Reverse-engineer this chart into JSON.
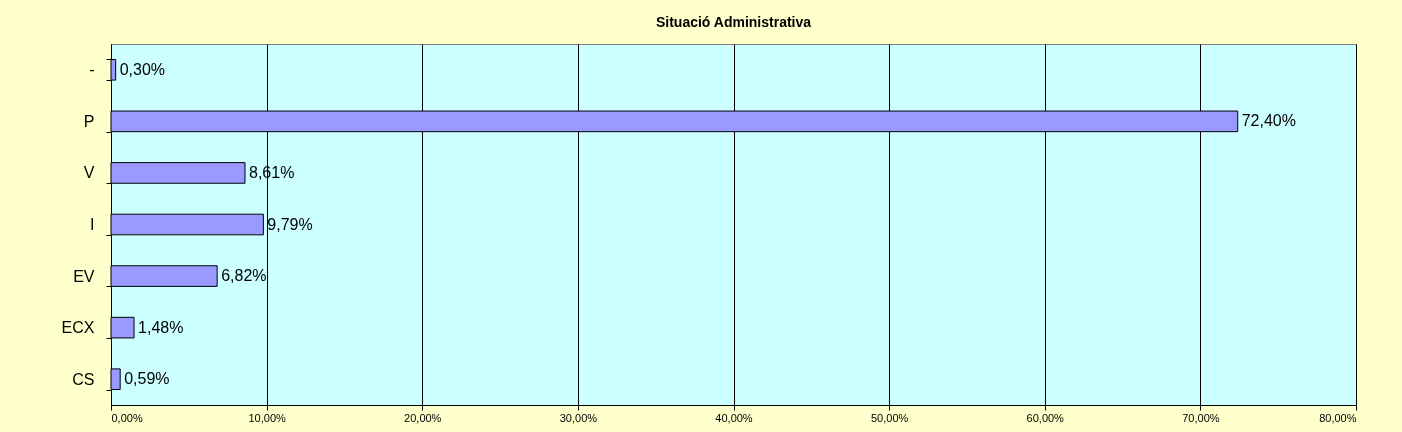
{
  "chart_data": {
    "type": "bar",
    "orientation": "horizontal",
    "title": "Situació Administrativa",
    "categories": [
      "-",
      "P",
      "V",
      "I",
      "EV",
      "ECX",
      "CS"
    ],
    "values": [
      0.3,
      72.4,
      8.61,
      9.79,
      6.82,
      1.48,
      0.59
    ],
    "value_labels": [
      "0,30%",
      "72,40%",
      "8,61%",
      "9,79%",
      "6,82%",
      "1,48%",
      "0,59%"
    ],
    "color": "#9999ff",
    "xlim": [
      0,
      80
    ],
    "xticks": [
      {
        "value": 0,
        "label": "0,00%"
      },
      {
        "value": 10,
        "label": "10,00%"
      },
      {
        "value": 20,
        "label": "20,00%"
      },
      {
        "value": 30,
        "label": "30,00%"
      },
      {
        "value": 40,
        "label": "40,00%"
      },
      {
        "value": 50,
        "label": "50,00%"
      },
      {
        "value": 60,
        "label": "60,00%"
      },
      {
        "value": 70,
        "label": "70,00%"
      },
      {
        "value": 80,
        "label": "80,00%"
      }
    ],
    "grid": "x"
  }
}
